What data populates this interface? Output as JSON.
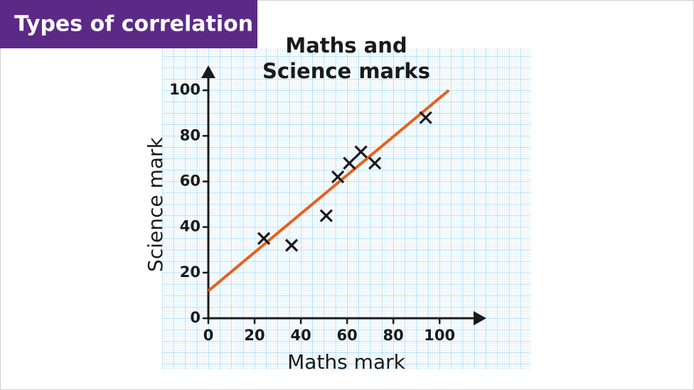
{
  "tag": "Types of correlation",
  "chart_data": {
    "type": "scatter",
    "title": [
      "Maths and",
      "Science marks"
    ],
    "x_label": "Maths mark",
    "y_label": "Science mark",
    "x": [
      24,
      36,
      51,
      56,
      61,
      66,
      72,
      94
    ],
    "values": [
      35,
      32,
      45,
      62,
      68,
      73,
      68,
      88
    ],
    "color": "#1a1a1a",
    "trend_line": {
      "x": [
        0,
        104
      ],
      "values": [
        12,
        100
      ],
      "color": "#e8601c"
    },
    "xlim": [
      0,
      119
    ],
    "ylim": [
      0,
      110
    ],
    "xticks": [
      0,
      20,
      40,
      60,
      80,
      100
    ],
    "yticks": [
      0,
      20,
      40,
      60,
      80,
      100
    ]
  }
}
